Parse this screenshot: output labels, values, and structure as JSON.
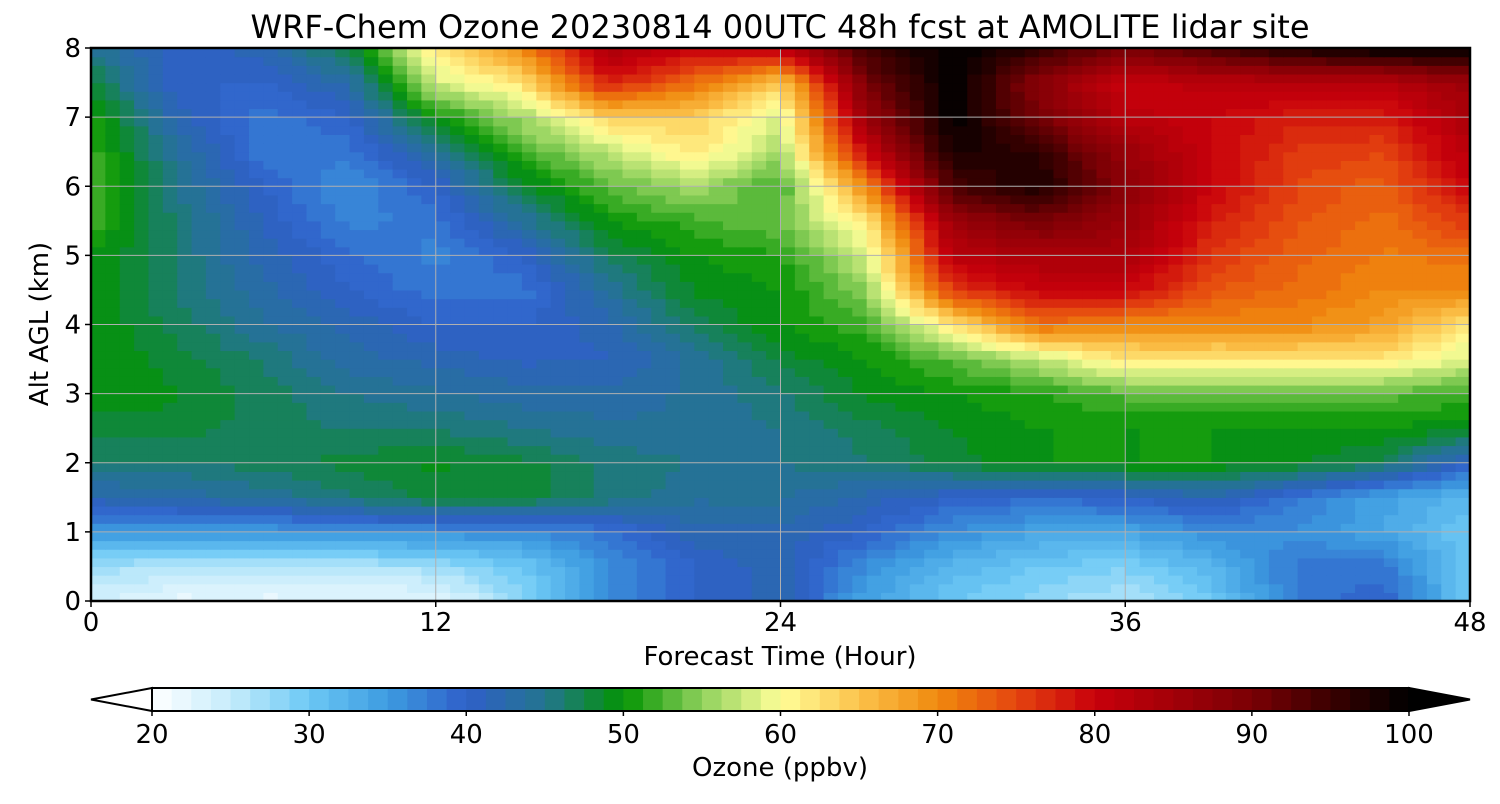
{
  "chart_data": {
    "type": "heatmap",
    "title": "WRF-Chem Ozone  20230814 00UTC 48h fcst at AMOLITE lidar site",
    "xlabel": "Forecast Time (Hour)",
    "ylabel": "Alt AGL (km)",
    "xlim": [
      0,
      48
    ],
    "ylim": [
      0,
      8
    ],
    "xticks": [
      0,
      12,
      24,
      36,
      48
    ],
    "yticks": [
      0,
      1,
      2,
      3,
      4,
      5,
      6,
      7,
      8
    ],
    "grid": true,
    "x_hours": [
      0,
      3,
      6,
      9,
      12,
      15,
      18,
      21,
      24,
      27,
      30,
      33,
      36,
      39,
      42,
      45,
      48
    ],
    "z_km": [
      0,
      0.5,
      1,
      1.5,
      2,
      2.5,
      3,
      3.5,
      4,
      4.5,
      5,
      5.5,
      6,
      6.5,
      7,
      7.5,
      8
    ],
    "ozone_ppbv": [
      [
        24,
        22,
        22,
        22,
        22,
        28,
        36,
        40,
        42,
        34,
        30,
        28,
        26,
        30,
        38,
        40,
        30
      ],
      [
        27,
        26,
        26,
        26,
        27,
        30,
        36,
        40,
        42,
        36,
        32,
        30,
        29,
        32,
        38,
        38,
        30
      ],
      [
        35,
        35,
        35,
        36,
        36,
        36,
        38,
        42,
        42,
        40,
        36,
        34,
        34,
        36,
        36,
        34,
        30
      ],
      [
        42,
        43,
        44,
        46,
        48,
        48,
        46,
        44,
        44,
        42,
        40,
        39,
        40,
        42,
        38,
        34,
        32
      ],
      [
        46,
        46,
        47,
        48,
        49,
        48,
        46,
        45,
        45,
        46,
        48,
        50,
        50,
        50,
        49,
        47,
        40
      ],
      [
        48,
        48,
        47,
        46,
        46,
        45,
        44,
        44,
        45,
        47,
        49,
        50,
        50,
        50,
        50,
        50,
        49
      ],
      [
        50,
        49,
        47,
        45,
        44,
        43,
        43,
        44,
        46,
        49,
        50,
        51,
        53,
        53,
        53,
        53,
        52
      ],
      [
        50,
        48,
        46,
        43,
        42,
        41,
        41,
        44,
        48,
        50,
        53,
        57,
        62,
        62,
        62,
        62,
        58
      ],
      [
        50,
        47,
        44,
        42,
        40,
        40,
        42,
        47,
        50,
        52,
        62,
        72,
        70,
        70,
        70,
        68,
        62
      ],
      [
        50,
        46,
        43,
        40,
        38,
        38,
        44,
        49,
        50,
        55,
        76,
        80,
        80,
        74,
        72,
        70,
        70
      ],
      [
        50,
        46,
        42,
        39,
        37,
        40,
        47,
        50,
        51,
        58,
        82,
        84,
        84,
        76,
        73,
        71,
        72
      ],
      [
        52,
        46,
        41,
        37,
        38,
        44,
        50,
        52,
        54,
        62,
        86,
        90,
        86,
        78,
        74,
        72,
        76
      ],
      [
        53,
        45,
        40,
        36,
        40,
        48,
        53,
        56,
        52,
        70,
        94,
        98,
        88,
        80,
        75,
        73,
        80
      ],
      [
        52,
        44,
        38,
        38,
        44,
        52,
        57,
        62,
        56,
        80,
        98,
        96,
        86,
        80,
        76,
        75,
        82
      ],
      [
        51,
        42,
        38,
        40,
        50,
        56,
        64,
        64,
        58,
        86,
        100,
        90,
        82,
        80,
        78,
        78,
        84
      ],
      [
        48,
        40,
        40,
        43,
        58,
        62,
        78,
        72,
        64,
        90,
        100,
        88,
        80,
        82,
        82,
        82,
        86
      ],
      [
        45,
        40,
        42,
        48,
        62,
        70,
        84,
        80,
        82,
        95,
        100,
        96,
        90,
        94,
        98,
        100,
        100
      ]
    ],
    "colorbar": {
      "label": "Ozone  (ppbv)",
      "min": 20,
      "max": 100,
      "ticks": [
        20,
        30,
        40,
        50,
        60,
        70,
        80,
        90,
        100
      ],
      "extend": "both",
      "levels": 64,
      "color_stops": [
        [
          20,
          "#ffffff"
        ],
        [
          25,
          "#c6ecfb"
        ],
        [
          30,
          "#6cc8f5"
        ],
        [
          35,
          "#3d9be0"
        ],
        [
          40,
          "#2f5fc9"
        ],
        [
          45,
          "#23758f"
        ],
        [
          50,
          "#039403"
        ],
        [
          55,
          "#8fd15c"
        ],
        [
          60,
          "#ffff99"
        ],
        [
          65,
          "#fbc24b"
        ],
        [
          70,
          "#f08a0e"
        ],
        [
          75,
          "#e5450f"
        ],
        [
          80,
          "#c8000b"
        ],
        [
          85,
          "#a20008"
        ],
        [
          90,
          "#7a0005"
        ],
        [
          95,
          "#3a0000"
        ],
        [
          100,
          "#000000"
        ]
      ]
    }
  }
}
